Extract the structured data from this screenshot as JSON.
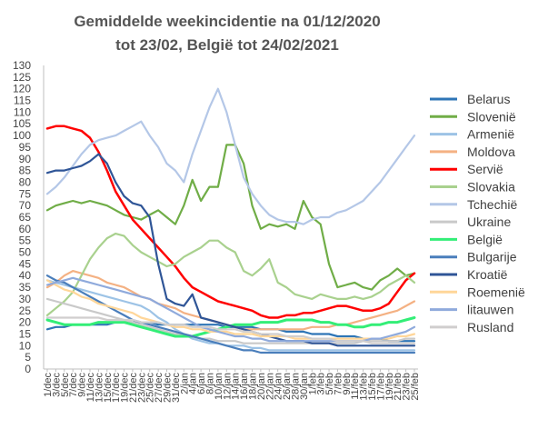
{
  "chart_data": {
    "type": "line",
    "title_lines": [
      "Gemiddelde weekincidentie  na 01/12/2020",
      "tot 23/02, België tot 24/02/2021"
    ],
    "x": [
      "1/dec",
      "3/dec",
      "5/dec",
      "7/dec",
      "9/dec",
      "11/dec",
      "13/dec",
      "15/dec",
      "17/dec",
      "19/dec",
      "21/dec",
      "23/dec",
      "25/dec",
      "27/dec",
      "29/dec",
      "31/dec",
      "2/jan",
      "4/jan",
      "6/jan",
      "8/jan",
      "10/jan",
      "12/jan",
      "14/jan",
      "16/jan",
      "18/jan",
      "20/jan",
      "22/jan",
      "24/jan",
      "26/jan",
      "28/jan",
      "30/jan",
      "1/feb",
      "3/feb",
      "5/feb",
      "7/feb",
      "9/feb",
      "11/feb",
      "13/feb",
      "15/feb",
      "17/feb",
      "19/feb",
      "21/feb",
      "23/feb",
      "25/feb"
    ],
    "ylim": [
      0,
      130
    ],
    "yticks": [
      0,
      5,
      10,
      15,
      20,
      25,
      30,
      35,
      40,
      45,
      50,
      55,
      60,
      65,
      70,
      75,
      80,
      85,
      90,
      95,
      100,
      105,
      110,
      115,
      120,
      125,
      130
    ],
    "grid": false,
    "legend_position": "right",
    "series": [
      {
        "name": "Belarus",
        "color": "#2e75b6",
        "width": 2.2,
        "values": [
          17,
          18,
          18,
          19,
          19,
          19,
          19,
          19,
          20,
          20,
          20,
          20,
          20,
          19,
          19,
          19,
          19,
          19,
          19,
          19,
          19,
          18,
          18,
          18,
          18,
          17,
          17,
          17,
          16,
          16,
          16,
          15,
          15,
          15,
          14,
          14,
          14,
          13,
          13,
          13,
          12,
          12,
          12,
          12
        ]
      },
      {
        "name": "Slovenië",
        "color": "#70ad47",
        "width": 2.2,
        "values": [
          68,
          70,
          71,
          72,
          71,
          72,
          71,
          70,
          68,
          66,
          65,
          64,
          66,
          68,
          65,
          62,
          70,
          81,
          72,
          78,
          78,
          96,
          96,
          88,
          70,
          60,
          62,
          61,
          62,
          60,
          72,
          65,
          62,
          45,
          35,
          36,
          37,
          35,
          34,
          38,
          40,
          43,
          40,
          41
        ]
      },
      {
        "name": "Armenië",
        "color": "#9dc3e6",
        "width": 2.2,
        "values": [
          38,
          37,
          36,
          35,
          34,
          33,
          32,
          31,
          30,
          29,
          28,
          27,
          25,
          22,
          20,
          17,
          15,
          13,
          12,
          11,
          11,
          10,
          10,
          10,
          9,
          9,
          8,
          8,
          8,
          8,
          8,
          8,
          8,
          8,
          8,
          8,
          8,
          8,
          8,
          8,
          8,
          8,
          8,
          8
        ]
      },
      {
        "name": "Moldova",
        "color": "#f4b183",
        "width": 2.2,
        "values": [
          35,
          37,
          40,
          42,
          41,
          40,
          39,
          37,
          36,
          35,
          33,
          31,
          30,
          28,
          27,
          26,
          24,
          23,
          22,
          21,
          20,
          19,
          18,
          17,
          17,
          17,
          17,
          17,
          17,
          17,
          17,
          18,
          18,
          18,
          19,
          19,
          20,
          21,
          22,
          23,
          24,
          25,
          27,
          29
        ]
      },
      {
        "name": "Servië",
        "color": "#ff0000",
        "width": 2.5,
        "values": [
          103,
          104,
          104,
          103,
          102,
          99,
          93,
          85,
          76,
          70,
          64,
          60,
          56,
          52,
          48,
          44,
          39,
          35,
          33,
          31,
          29,
          28,
          27,
          26,
          25,
          23,
          22,
          22,
          23,
          23,
          24,
          24,
          25,
          26,
          27,
          27,
          26,
          25,
          25,
          26,
          28,
          33,
          38,
          41
        ]
      },
      {
        "name": "Slovakia",
        "color": "#a9d18e",
        "width": 2.2,
        "values": [
          23,
          26,
          29,
          33,
          40,
          47,
          52,
          56,
          58,
          57,
          53,
          50,
          48,
          46,
          44,
          45,
          48,
          50,
          52,
          55,
          55,
          52,
          50,
          42,
          40,
          43,
          47,
          37,
          35,
          32,
          31,
          30,
          32,
          31,
          30,
          30,
          31,
          30,
          31,
          33,
          36,
          38,
          40,
          37
        ]
      },
      {
        "name": "Tchechië",
        "color": "#b4c7e7",
        "width": 2.2,
        "values": [
          75,
          78,
          82,
          87,
          92,
          96,
          98,
          99,
          100,
          102,
          104,
          106,
          100,
          95,
          88,
          85,
          80,
          92,
          102,
          112,
          120,
          110,
          96,
          82,
          75,
          70,
          66,
          64,
          63,
          63,
          62,
          64,
          65,
          65,
          67,
          68,
          70,
          72,
          76,
          80,
          85,
          90,
          95,
          100
        ]
      },
      {
        "name": "Ukraine",
        "color": "#c9c9c9",
        "width": 2.2,
        "values": [
          30,
          29,
          28,
          27,
          26,
          25,
          24,
          23,
          22,
          21,
          20,
          19,
          18,
          17,
          16,
          15,
          15,
          14,
          13,
          13,
          12,
          12,
          12,
          11,
          11,
          11,
          11,
          11,
          11,
          11,
          11,
          11,
          11,
          11,
          11,
          11,
          11,
          12,
          12,
          12,
          12,
          12,
          13,
          13
        ]
      },
      {
        "name": "België",
        "color": "#33ee77",
        "width": 3,
        "values": [
          21,
          20,
          19,
          19,
          19,
          19,
          20,
          20,
          20,
          20,
          19,
          18,
          17,
          16,
          15,
          14,
          14,
          14,
          15,
          16,
          17,
          18,
          19,
          19,
          19,
          20,
          20,
          20,
          21,
          21,
          21,
          21,
          20,
          20,
          19,
          19,
          18,
          18,
          19,
          19,
          20,
          20,
          21,
          22
        ]
      },
      {
        "name": "Bulgarije",
        "color": "#4a7ebb",
        "width": 2.2,
        "values": [
          40,
          38,
          37,
          35,
          33,
          31,
          29,
          27,
          25,
          23,
          21,
          20,
          19,
          18,
          17,
          16,
          15,
          14,
          13,
          12,
          11,
          10,
          9,
          8,
          8,
          7,
          7,
          7,
          7,
          7,
          7,
          7,
          7,
          7,
          7,
          7,
          7,
          7,
          7,
          7,
          7,
          7,
          7,
          7
        ]
      },
      {
        "name": "Kroatië",
        "color": "#2f5597",
        "width": 2.2,
        "values": [
          84,
          85,
          85,
          86,
          87,
          89,
          92,
          88,
          80,
          74,
          71,
          70,
          65,
          45,
          30,
          28,
          27,
          32,
          22,
          21,
          20,
          19,
          18,
          17,
          16,
          15,
          14,
          13,
          12,
          12,
          12,
          11,
          11,
          11,
          10,
          10,
          10,
          10,
          10,
          10,
          10,
          10,
          10,
          10
        ]
      },
      {
        "name": "Roemenië",
        "color": "#ffd699",
        "width": 2.2,
        "values": [
          38,
          36,
          34,
          33,
          31,
          30,
          28,
          27,
          26,
          25,
          24,
          22,
          21,
          20,
          19,
          18,
          18,
          17,
          17,
          16,
          16,
          16,
          15,
          15,
          15,
          14,
          14,
          14,
          14,
          13,
          13,
          13,
          13,
          13,
          13,
          13,
          13,
          13,
          13,
          13,
          13,
          14,
          14,
          15
        ]
      },
      {
        "name": "litauwen",
        "color": "#8faadc",
        "width": 2.2,
        "values": [
          36,
          37,
          38,
          39,
          38,
          37,
          36,
          35,
          34,
          33,
          32,
          31,
          30,
          28,
          26,
          24,
          22,
          20,
          18,
          17,
          16,
          15,
          14,
          14,
          13,
          13,
          12,
          12,
          12,
          12,
          12,
          12,
          12,
          12,
          12,
          12,
          12,
          12,
          13,
          13,
          14,
          15,
          16,
          18
        ]
      },
      {
        "name": "Rusland",
        "color": "#d0cece",
        "width": 2.2,
        "values": [
          22,
          22,
          22,
          22,
          22,
          22,
          22,
          21,
          21,
          21,
          21,
          20,
          20,
          20,
          19,
          19,
          19,
          18,
          18,
          18,
          17,
          17,
          17,
          16,
          16,
          15,
          15,
          15,
          14,
          14,
          14,
          13,
          13,
          13,
          12,
          12,
          12,
          12,
          11,
          11,
          11,
          11,
          11,
          11
        ]
      }
    ]
  }
}
